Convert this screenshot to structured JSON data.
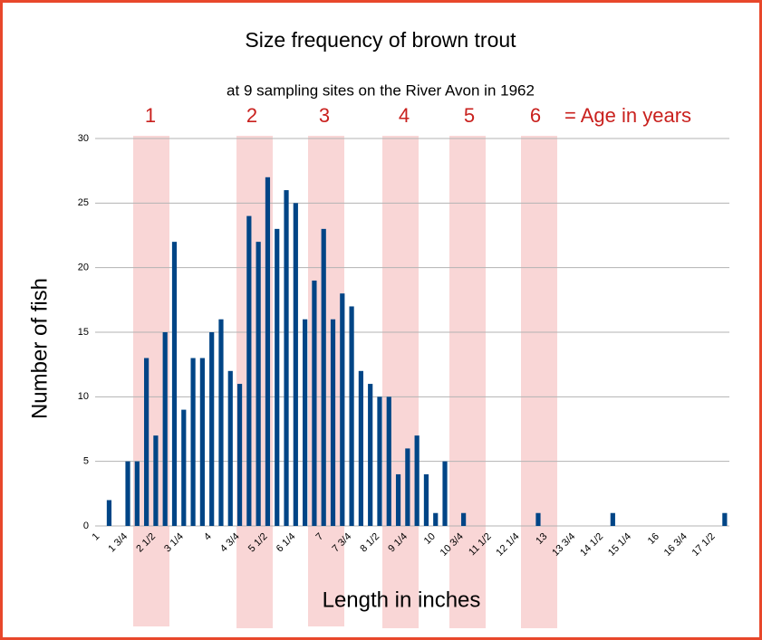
{
  "chart_data": {
    "type": "bar",
    "title": "Size frequency of brown trout",
    "subtitle": "at 9 sampling sites on the River Avon in 1962",
    "x_label": "Length in inches",
    "y_label": "Number of fish",
    "annotations": [
      "1",
      "2",
      "3",
      "4",
      "5",
      "6",
      "= Age in years"
    ],
    "categories": [
      "1",
      null,
      null,
      "1 3/4",
      null,
      null,
      "2 1/2",
      null,
      null,
      "3 1/4",
      null,
      null,
      "4",
      null,
      null,
      "4 3/4",
      null,
      null,
      "5 1/2",
      null,
      null,
      "6 1/4",
      null,
      null,
      "7",
      null,
      null,
      "7 3/4",
      null,
      null,
      "8 1/2",
      null,
      null,
      "9 1/4",
      null,
      null,
      "10",
      null,
      null,
      "10 3/4",
      null,
      null,
      "11 1/2",
      null,
      null,
      "12 1/4",
      null,
      null,
      "13",
      null,
      null,
      "13 3/4",
      null,
      null,
      "14 1/2",
      null,
      null,
      "15 1/4",
      null,
      null,
      "16",
      null,
      null,
      "16 3/4",
      null,
      null,
      "17 1/2",
      null
    ],
    "values": [
      0,
      2,
      0,
      5,
      5,
      13,
      7,
      15,
      22,
      9,
      13,
      13,
      15,
      16,
      12,
      11,
      24,
      22,
      27,
      23,
      26,
      25,
      16,
      19,
      23,
      16,
      18,
      17,
      12,
      11,
      10,
      10,
      4,
      6,
      7,
      4,
      1,
      5,
      0,
      1,
      0,
      0,
      0,
      0,
      0,
      0,
      0,
      1,
      0,
      0,
      0,
      0,
      0,
      0,
      0,
      1,
      0,
      0,
      0,
      0,
      0,
      0,
      0,
      0,
      0,
      0,
      0,
      1
    ],
    "color": "#004586",
    "ylim": [
      0,
      30
    ],
    "yticks": [
      0,
      5,
      10,
      15,
      20,
      25,
      30
    ],
    "grid": true
  }
}
